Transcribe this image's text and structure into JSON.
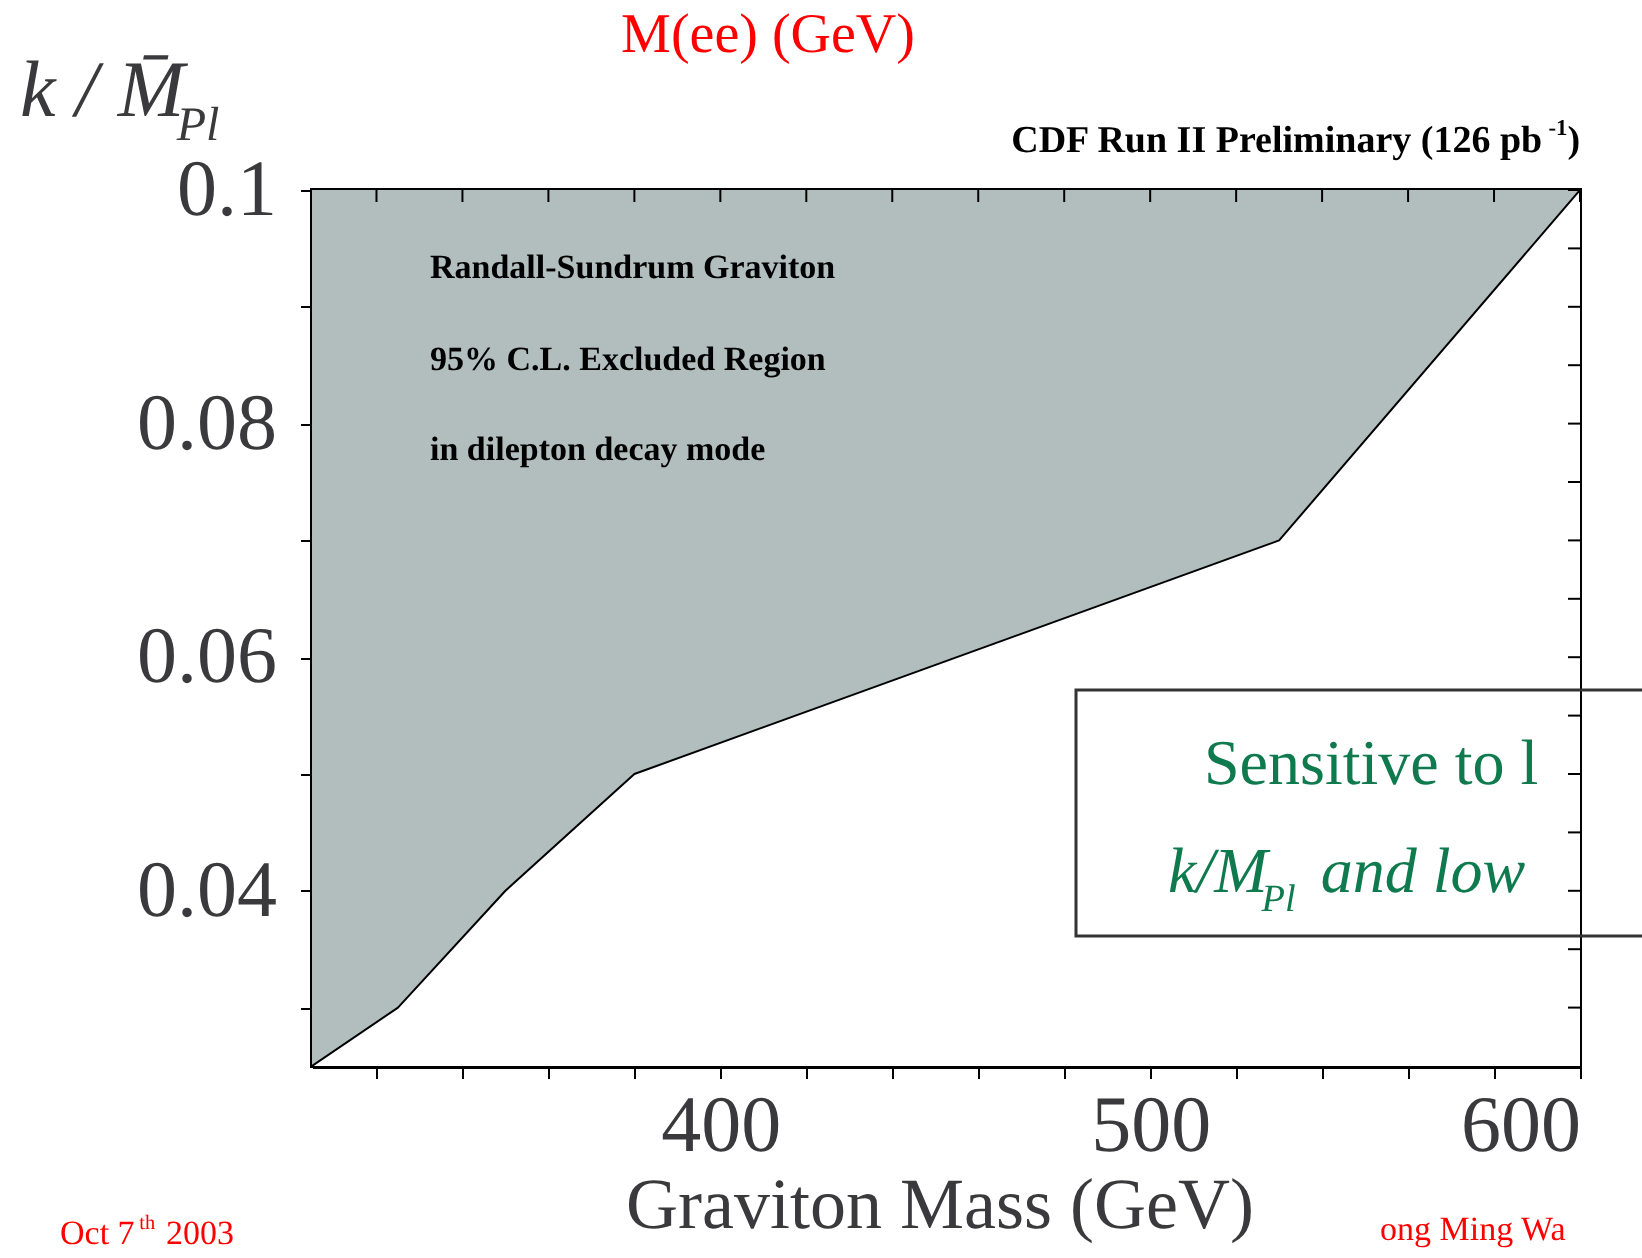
{
  "chart_data": {
    "type": "area",
    "title": "M(ee) (GeV)",
    "xlabel": "Graviton Mass (GeV)",
    "ylabel": "k / M̄$_{Pl}$",
    "x": [
      305,
      325,
      350,
      380,
      530,
      600
    ],
    "series": [
      {
        "color": "#ffffff",
        "values": [
          0.025,
          0.03,
          0.04,
          0.05,
          0.07,
          0.1
        ]
      }
    ],
    "bands": [
      {
        "axis": "y",
        "from": 0.025,
        "to": 0.1,
        "color": "#b2bebe"
      }
    ],
    "xlim": [
      305,
      600
    ],
    "ylim": [
      0.025,
      0.1
    ],
    "xticks": [
      {
        "value": 320,
        "label": null
      },
      {
        "value": 340,
        "label": null
      },
      {
        "value": 360,
        "label": null
      },
      {
        "value": 380,
        "label": null
      },
      400,
      {
        "value": 420,
        "label": null
      },
      {
        "value": 440,
        "label": null
      },
      {
        "value": 460,
        "label": null
      },
      {
        "value": 480,
        "label": null
      },
      500,
      {
        "value": 520,
        "label": null
      },
      {
        "value": 540,
        "label": null
      },
      {
        "value": 560,
        "label": null
      },
      {
        "value": 580,
        "label": null
      },
      600
    ],
    "yticks": [
      {
        "value": 0.03,
        "label": null
      },
      {
        "value": 0.035,
        "label": null
      },
      0.04,
      {
        "value": 0.045,
        "label": null
      },
      {
        "value": 0.05,
        "label": null
      },
      {
        "value": 0.055,
        "label": null
      },
      0.06,
      {
        "value": 0.065,
        "label": null
      },
      {
        "value": 0.07,
        "label": null
      },
      {
        "value": 0.075,
        "label": null
      },
      0.08,
      {
        "value": 0.085,
        "label": null
      },
      {
        "value": 0.09,
        "label": null
      },
      {
        "value": 0.095,
        "label": null
      },
      0.1
    ],
    "grid": false,
    "annotations": [
      "CDF Run II Preliminary (126 pb$^{-1}$)",
      "Randall-Sundrum Graviton",
      "95% C.L. Excluded Region",
      "in dilepton decay mode",
      "Sensitive to l",
      "k/M$_{Pl}$ and low",
      "Oct 7$^{th}$ 2003",
      "ong Ming Wa"
    ]
  }
}
